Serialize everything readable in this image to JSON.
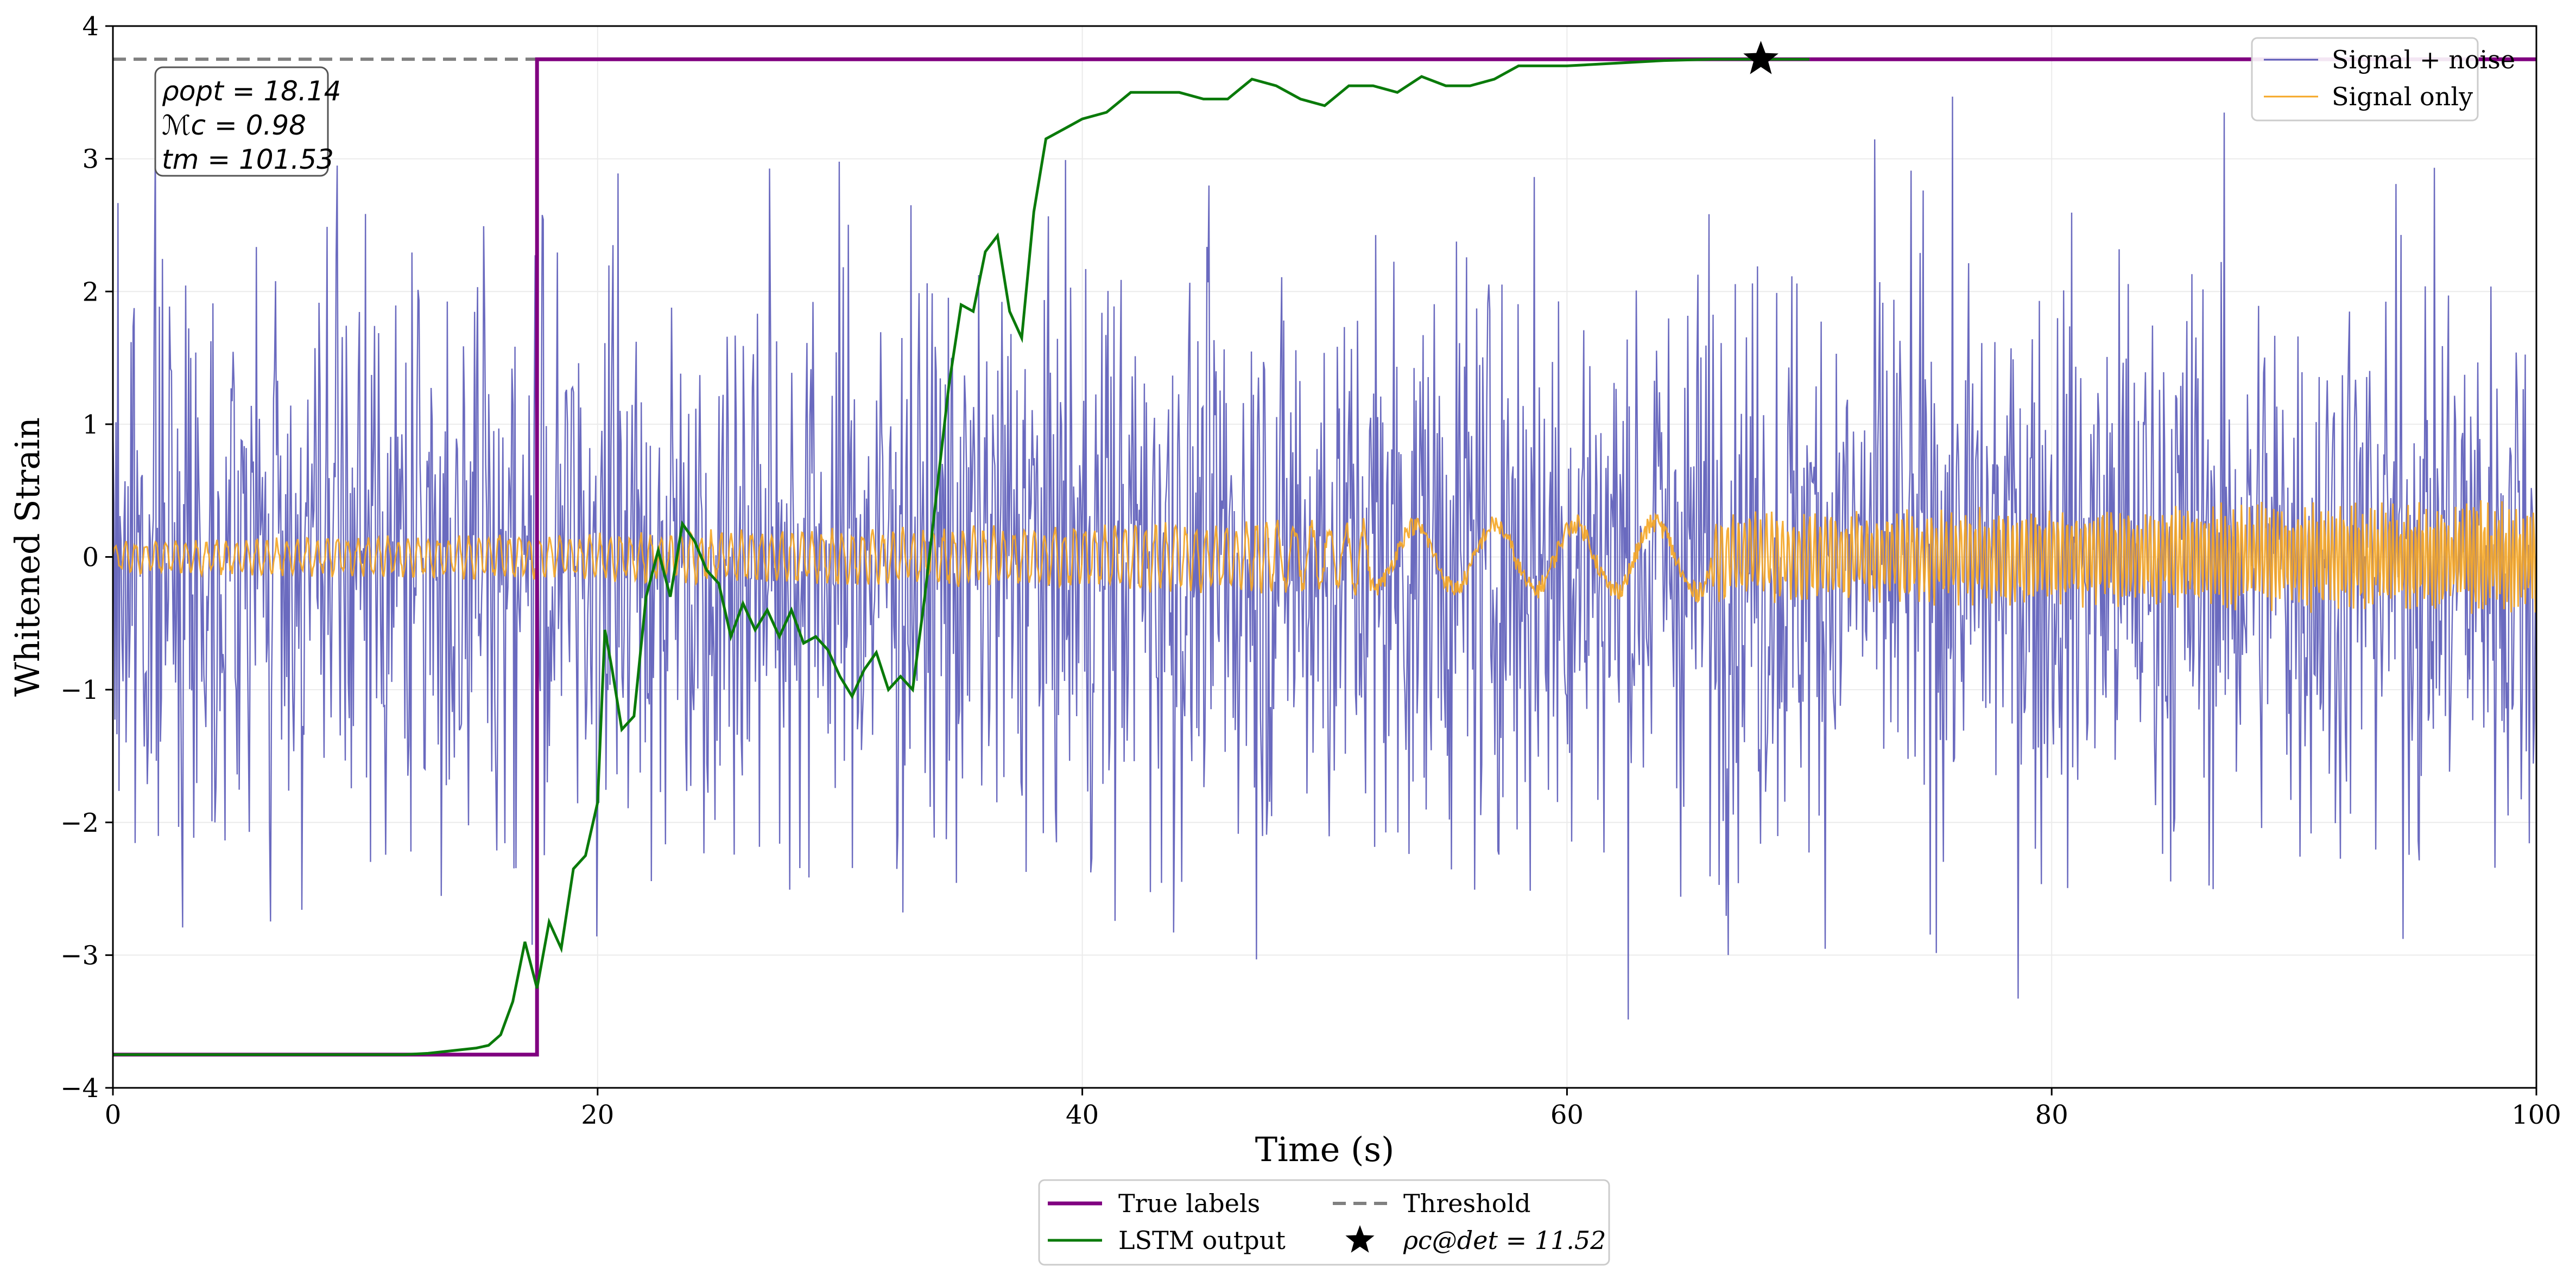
{
  "chart_data": {
    "type": "line",
    "xlabel": "Time (s)",
    "ylabel": "Whitened Strain",
    "xlim": [
      0,
      100
    ],
    "ylim": [
      -4,
      4
    ],
    "xticks": [
      0,
      20,
      40,
      60,
      80,
      100
    ],
    "yticks": [
      -4,
      -3,
      -2,
      -1,
      0,
      1,
      2,
      3,
      4
    ],
    "xtick_labels": [
      "0",
      "20",
      "40",
      "60",
      "80",
      "100"
    ],
    "ytick_labels": [
      "−4",
      "−3",
      "−2",
      "−1",
      "0",
      "1",
      "2",
      "3",
      "4"
    ],
    "grid": true,
    "threshold": 3.75,
    "detection": {
      "x": 68,
      "y": 3.75,
      "label": "ρc@det = 11.52"
    },
    "annotation_lines": [
      "ρopt = 18.14",
      "ℳc = 0.98",
      "tm = 101.53"
    ],
    "colors": {
      "signal_noise": "#5a5ab8",
      "signal_only": "#f5a623",
      "true_labels": "#800080",
      "lstm": "#0a7a0a",
      "threshold": "#808080",
      "star": "#000000"
    },
    "true_labels": {
      "name": "True labels",
      "x": [
        0,
        17.5,
        17.5,
        100
      ],
      "y": [
        -3.75,
        -3.75,
        3.75,
        3.75
      ]
    },
    "lstm_output": {
      "name": "LSTM output",
      "x": [
        0,
        12,
        13,
        14,
        15,
        15.5,
        16,
        16.5,
        17,
        17.5,
        18,
        18.5,
        19,
        19.5,
        20,
        20.3,
        20.6,
        21,
        21.5,
        22,
        22.5,
        23,
        23.5,
        24,
        24.5,
        25,
        25.5,
        26,
        26.5,
        27,
        27.5,
        28,
        28.5,
        29,
        29.5,
        30,
        30.5,
        31,
        31.5,
        32,
        32.5,
        33,
        33.5,
        34,
        34.5,
        35,
        35.5,
        36,
        36.5,
        37,
        37.5,
        38,
        38.5,
        39,
        39.5,
        40,
        41,
        42,
        43,
        44,
        45,
        46,
        47,
        48,
        49,
        50,
        51,
        52,
        53,
        54,
        55,
        56,
        57,
        58,
        60,
        62,
        64,
        66,
        68,
        70
      ],
      "y": [
        -3.75,
        -3.75,
        -3.74,
        -3.72,
        -3.7,
        -3.68,
        -3.6,
        -3.35,
        -2.9,
        -3.25,
        -2.75,
        -2.95,
        -2.35,
        -2.25,
        -1.85,
        -0.55,
        -0.85,
        -1.3,
        -1.2,
        -0.3,
        0.05,
        -0.3,
        0.25,
        0.12,
        -0.1,
        -0.2,
        -0.6,
        -0.35,
        -0.55,
        -0.4,
        -0.6,
        -0.4,
        -0.65,
        -0.6,
        -0.7,
        -0.9,
        -1.05,
        -0.85,
        -0.72,
        -1.0,
        -0.9,
        -1.0,
        -0.3,
        0.5,
        1.3,
        1.9,
        1.85,
        2.3,
        2.42,
        1.85,
        1.65,
        2.6,
        3.15,
        3.2,
        3.25,
        3.3,
        3.35,
        3.5,
        3.5,
        3.5,
        3.45,
        3.45,
        3.6,
        3.55,
        3.45,
        3.4,
        3.55,
        3.55,
        3.5,
        3.62,
        3.55,
        3.55,
        3.6,
        3.7,
        3.7,
        3.72,
        3.74,
        3.75,
        3.75,
        3.75
      ]
    },
    "signal_noise": {
      "name": "Signal + noise",
      "n_points": 2400,
      "amplitude_sd": 1.1,
      "seed": 7
    },
    "signal_only": {
      "name": "Signal only",
      "n_points": 2400,
      "amplitude_start": 0.1,
      "amplitude_end": 0.35
    },
    "legend_top_right": [
      "Signal + noise",
      "Signal only"
    ],
    "legend_bottom": [
      "True labels",
      "Threshold",
      "LSTM output",
      "ρc@det = 11.52"
    ]
  }
}
